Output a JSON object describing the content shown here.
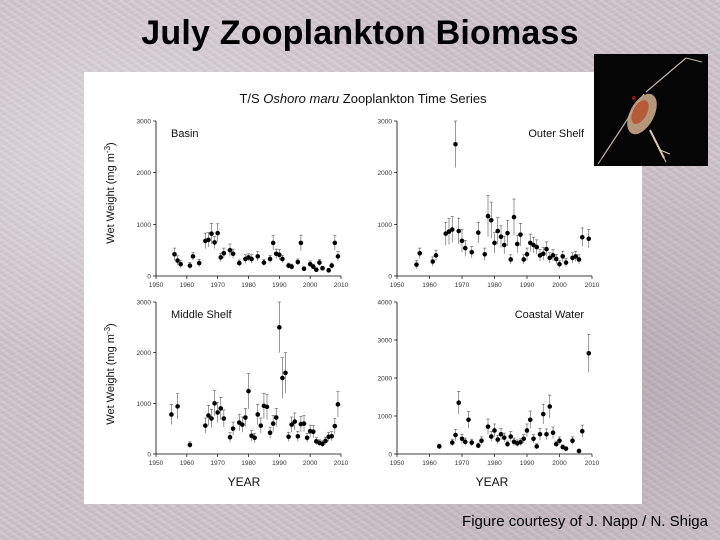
{
  "slide": {
    "title": "July Zooplankton Biomass",
    "credit": "Figure courtesy of J. Napp / N. Shiga"
  },
  "figure": {
    "title_prefix": "T/S ",
    "title_italic": "Oshoro maru",
    "title_suffix": " Zooplankton Time Series",
    "ylabel_left": "Wet Weight (mg m",
    "ylabel_sup": "-3",
    "ylabel_close": ")",
    "xlabel": "YEAR"
  },
  "photo": {
    "subject": "copepod",
    "icon": "copepod-icon",
    "background": "#050505"
  },
  "colors": {
    "marker": "#000000",
    "errorbar": "#555555",
    "axis": "#000000",
    "tick_text": "#333333"
  },
  "chart_data": [
    {
      "type": "scatter",
      "panel": "Basin",
      "xlim": [
        1950,
        2010
      ],
      "ylim": [
        0,
        3000
      ],
      "xticks": [
        1950,
        1960,
        1970,
        1980,
        1990,
        2000,
        2010
      ],
      "yticks": [
        0,
        1000,
        2000,
        3000
      ],
      "points": [
        [
          1956,
          420,
          120
        ],
        [
          1957,
          300,
          90
        ],
        [
          1958,
          230,
          70
        ],
        [
          1961,
          200,
          60
        ],
        [
          1962,
          380,
          80
        ],
        [
          1964,
          250,
          70
        ],
        [
          1966,
          680,
          150
        ],
        [
          1967,
          700,
          140
        ],
        [
          1968,
          820,
          200
        ],
        [
          1969,
          650,
          120
        ],
        [
          1970,
          830,
          180
        ],
        [
          1971,
          360,
          80
        ],
        [
          1972,
          440,
          100
        ],
        [
          1974,
          500,
          120
        ],
        [
          1975,
          430,
          90
        ],
        [
          1977,
          250,
          60
        ],
        [
          1979,
          330,
          80
        ],
        [
          1980,
          360,
          70
        ],
        [
          1981,
          330,
          80
        ],
        [
          1983,
          380,
          90
        ],
        [
          1985,
          260,
          60
        ],
        [
          1987,
          330,
          70
        ],
        [
          1988,
          640,
          140
        ],
        [
          1989,
          430,
          90
        ],
        [
          1990,
          410,
          100
        ],
        [
          1991,
          330,
          70
        ],
        [
          1993,
          200,
          50
        ],
        [
          1994,
          180,
          50
        ],
        [
          1996,
          270,
          60
        ],
        [
          1997,
          640,
          150
        ],
        [
          1998,
          140,
          40
        ],
        [
          2000,
          230,
          60
        ],
        [
          2001,
          180,
          50
        ],
        [
          2002,
          120,
          40
        ],
        [
          2003,
          260,
          60
        ],
        [
          2004,
          150,
          40
        ],
        [
          2006,
          110,
          40
        ],
        [
          2007,
          200,
          50
        ],
        [
          2008,
          640,
          140
        ],
        [
          2009,
          380,
          90
        ]
      ]
    },
    {
      "type": "scatter",
      "panel": "Outer Shelf",
      "xlim": [
        1950,
        2010
      ],
      "ylim": [
        0,
        3000
      ],
      "xticks": [
        1950,
        1960,
        1970,
        1980,
        1990,
        2000,
        2010
      ],
      "yticks": [
        0,
        1000,
        2000,
        3000
      ],
      "points": [
        [
          1956,
          220,
          80
        ],
        [
          1957,
          440,
          100
        ],
        [
          1961,
          280,
          90
        ],
        [
          1962,
          400,
          100
        ],
        [
          1965,
          820,
          220
        ],
        [
          1966,
          860,
          250
        ],
        [
          1967,
          900,
          250
        ],
        [
          1968,
          2550,
          450
        ],
        [
          1969,
          870,
          250
        ],
        [
          1970,
          680,
          220
        ],
        [
          1971,
          540,
          150
        ],
        [
          1973,
          460,
          110
        ],
        [
          1975,
          840,
          200
        ],
        [
          1977,
          420,
          120
        ],
        [
          1978,
          1160,
          400
        ],
        [
          1979,
          1080,
          350
        ],
        [
          1980,
          640,
          200
        ],
        [
          1981,
          870,
          260
        ],
        [
          1982,
          760,
          210
        ],
        [
          1983,
          600,
          170
        ],
        [
          1984,
          830,
          250
        ],
        [
          1985,
          320,
          90
        ],
        [
          1986,
          1140,
          350
        ],
        [
          1987,
          620,
          170
        ],
        [
          1988,
          800,
          220
        ],
        [
          1989,
          320,
          90
        ],
        [
          1990,
          420,
          120
        ],
        [
          1991,
          640,
          170
        ],
        [
          1992,
          600,
          150
        ],
        [
          1993,
          560,
          140
        ],
        [
          1994,
          400,
          110
        ],
        [
          1995,
          430,
          120
        ],
        [
          1996,
          520,
          140
        ],
        [
          1997,
          350,
          100
        ],
        [
          1998,
          400,
          110
        ],
        [
          1999,
          330,
          90
        ],
        [
          2000,
          230,
          70
        ],
        [
          2001,
          380,
          100
        ],
        [
          2002,
          260,
          80
        ],
        [
          2004,
          350,
          100
        ],
        [
          2005,
          380,
          100
        ],
        [
          2006,
          320,
          90
        ],
        [
          2007,
          750,
          180
        ],
        [
          2009,
          720,
          180
        ]
      ]
    },
    {
      "type": "scatter",
      "panel": "Middle Shelf",
      "xlim": [
        1950,
        2010
      ],
      "ylim": [
        0,
        3000
      ],
      "xticks": [
        1950,
        1960,
        1970,
        1980,
        1990,
        2000,
        2010
      ],
      "yticks": [
        0,
        1000,
        2000,
        3000
      ],
      "points": [
        [
          1955,
          780,
          200
        ],
        [
          1957,
          940,
          250
        ],
        [
          1961,
          180,
          60
        ],
        [
          1966,
          560,
          150
        ],
        [
          1967,
          760,
          200
        ],
        [
          1968,
          700,
          180
        ],
        [
          1969,
          1000,
          250
        ],
        [
          1970,
          820,
          200
        ],
        [
          1971,
          900,
          220
        ],
        [
          1972,
          700,
          170
        ],
        [
          1974,
          330,
          90
        ],
        [
          1975,
          500,
          130
        ],
        [
          1977,
          620,
          160
        ],
        [
          1978,
          580,
          150
        ],
        [
          1979,
          720,
          180
        ],
        [
          1980,
          1240,
          350
        ],
        [
          1981,
          360,
          100
        ],
        [
          1982,
          320,
          90
        ],
        [
          1983,
          780,
          200
        ],
        [
          1984,
          560,
          150
        ],
        [
          1985,
          950,
          250
        ],
        [
          1986,
          930,
          250
        ],
        [
          1987,
          420,
          110
        ],
        [
          1988,
          600,
          160
        ],
        [
          1989,
          720,
          180
        ],
        [
          1990,
          2500,
          500
        ],
        [
          1991,
          1500,
          400
        ],
        [
          1992,
          1600,
          400
        ],
        [
          1993,
          340,
          90
        ],
        [
          1994,
          580,
          150
        ],
        [
          1995,
          640,
          170
        ],
        [
          1996,
          350,
          100
        ],
        [
          1997,
          590,
          150
        ],
        [
          1998,
          600,
          160
        ],
        [
          1999,
          320,
          90
        ],
        [
          2000,
          450,
          120
        ],
        [
          2001,
          440,
          120
        ],
        [
          2002,
          250,
          70
        ],
        [
          2003,
          220,
          60
        ],
        [
          2004,
          200,
          60
        ],
        [
          2005,
          260,
          70
        ],
        [
          2006,
          340,
          90
        ],
        [
          2007,
          350,
          90
        ],
        [
          2008,
          550,
          150
        ],
        [
          2009,
          980,
          250
        ]
      ]
    },
    {
      "type": "scatter",
      "panel": "Coastal Water",
      "xlim": [
        1950,
        2010
      ],
      "ylim": [
        0,
        4000
      ],
      "xticks": [
        1950,
        1960,
        1970,
        1980,
        1990,
        2000,
        2010
      ],
      "yticks": [
        0,
        1000,
        2000,
        3000,
        4000
      ],
      "points": [
        [
          1963,
          200,
          60
        ],
        [
          1967,
          300,
          90
        ],
        [
          1968,
          500,
          150
        ],
        [
          1969,
          1350,
          300
        ],
        [
          1970,
          400,
          120
        ],
        [
          1971,
          320,
          100
        ],
        [
          1972,
          900,
          220
        ],
        [
          1973,
          300,
          90
        ],
        [
          1975,
          220,
          70
        ],
        [
          1976,
          350,
          100
        ],
        [
          1978,
          720,
          200
        ],
        [
          1979,
          460,
          130
        ],
        [
          1980,
          620,
          170
        ],
        [
          1981,
          380,
          110
        ],
        [
          1982,
          520,
          150
        ],
        [
          1983,
          430,
          120
        ],
        [
          1984,
          260,
          80
        ],
        [
          1985,
          460,
          130
        ],
        [
          1986,
          320,
          100
        ],
        [
          1987,
          280,
          90
        ],
        [
          1988,
          310,
          90
        ],
        [
          1989,
          400,
          110
        ],
        [
          1990,
          620,
          170
        ],
        [
          1991,
          900,
          230
        ],
        [
          1992,
          400,
          110
        ],
        [
          1993,
          200,
          70
        ],
        [
          1994,
          520,
          150
        ],
        [
          1995,
          1050,
          260
        ],
        [
          1996,
          520,
          140
        ],
        [
          1997,
          1250,
          300
        ],
        [
          1998,
          560,
          150
        ],
        [
          1999,
          260,
          80
        ],
        [
          2000,
          350,
          100
        ],
        [
          2001,
          180,
          60
        ],
        [
          2002,
          140,
          50
        ],
        [
          2004,
          350,
          100
        ],
        [
          2006,
          80,
          40
        ],
        [
          2007,
          600,
          160
        ],
        [
          2009,
          2650,
          500
        ]
      ]
    }
  ]
}
